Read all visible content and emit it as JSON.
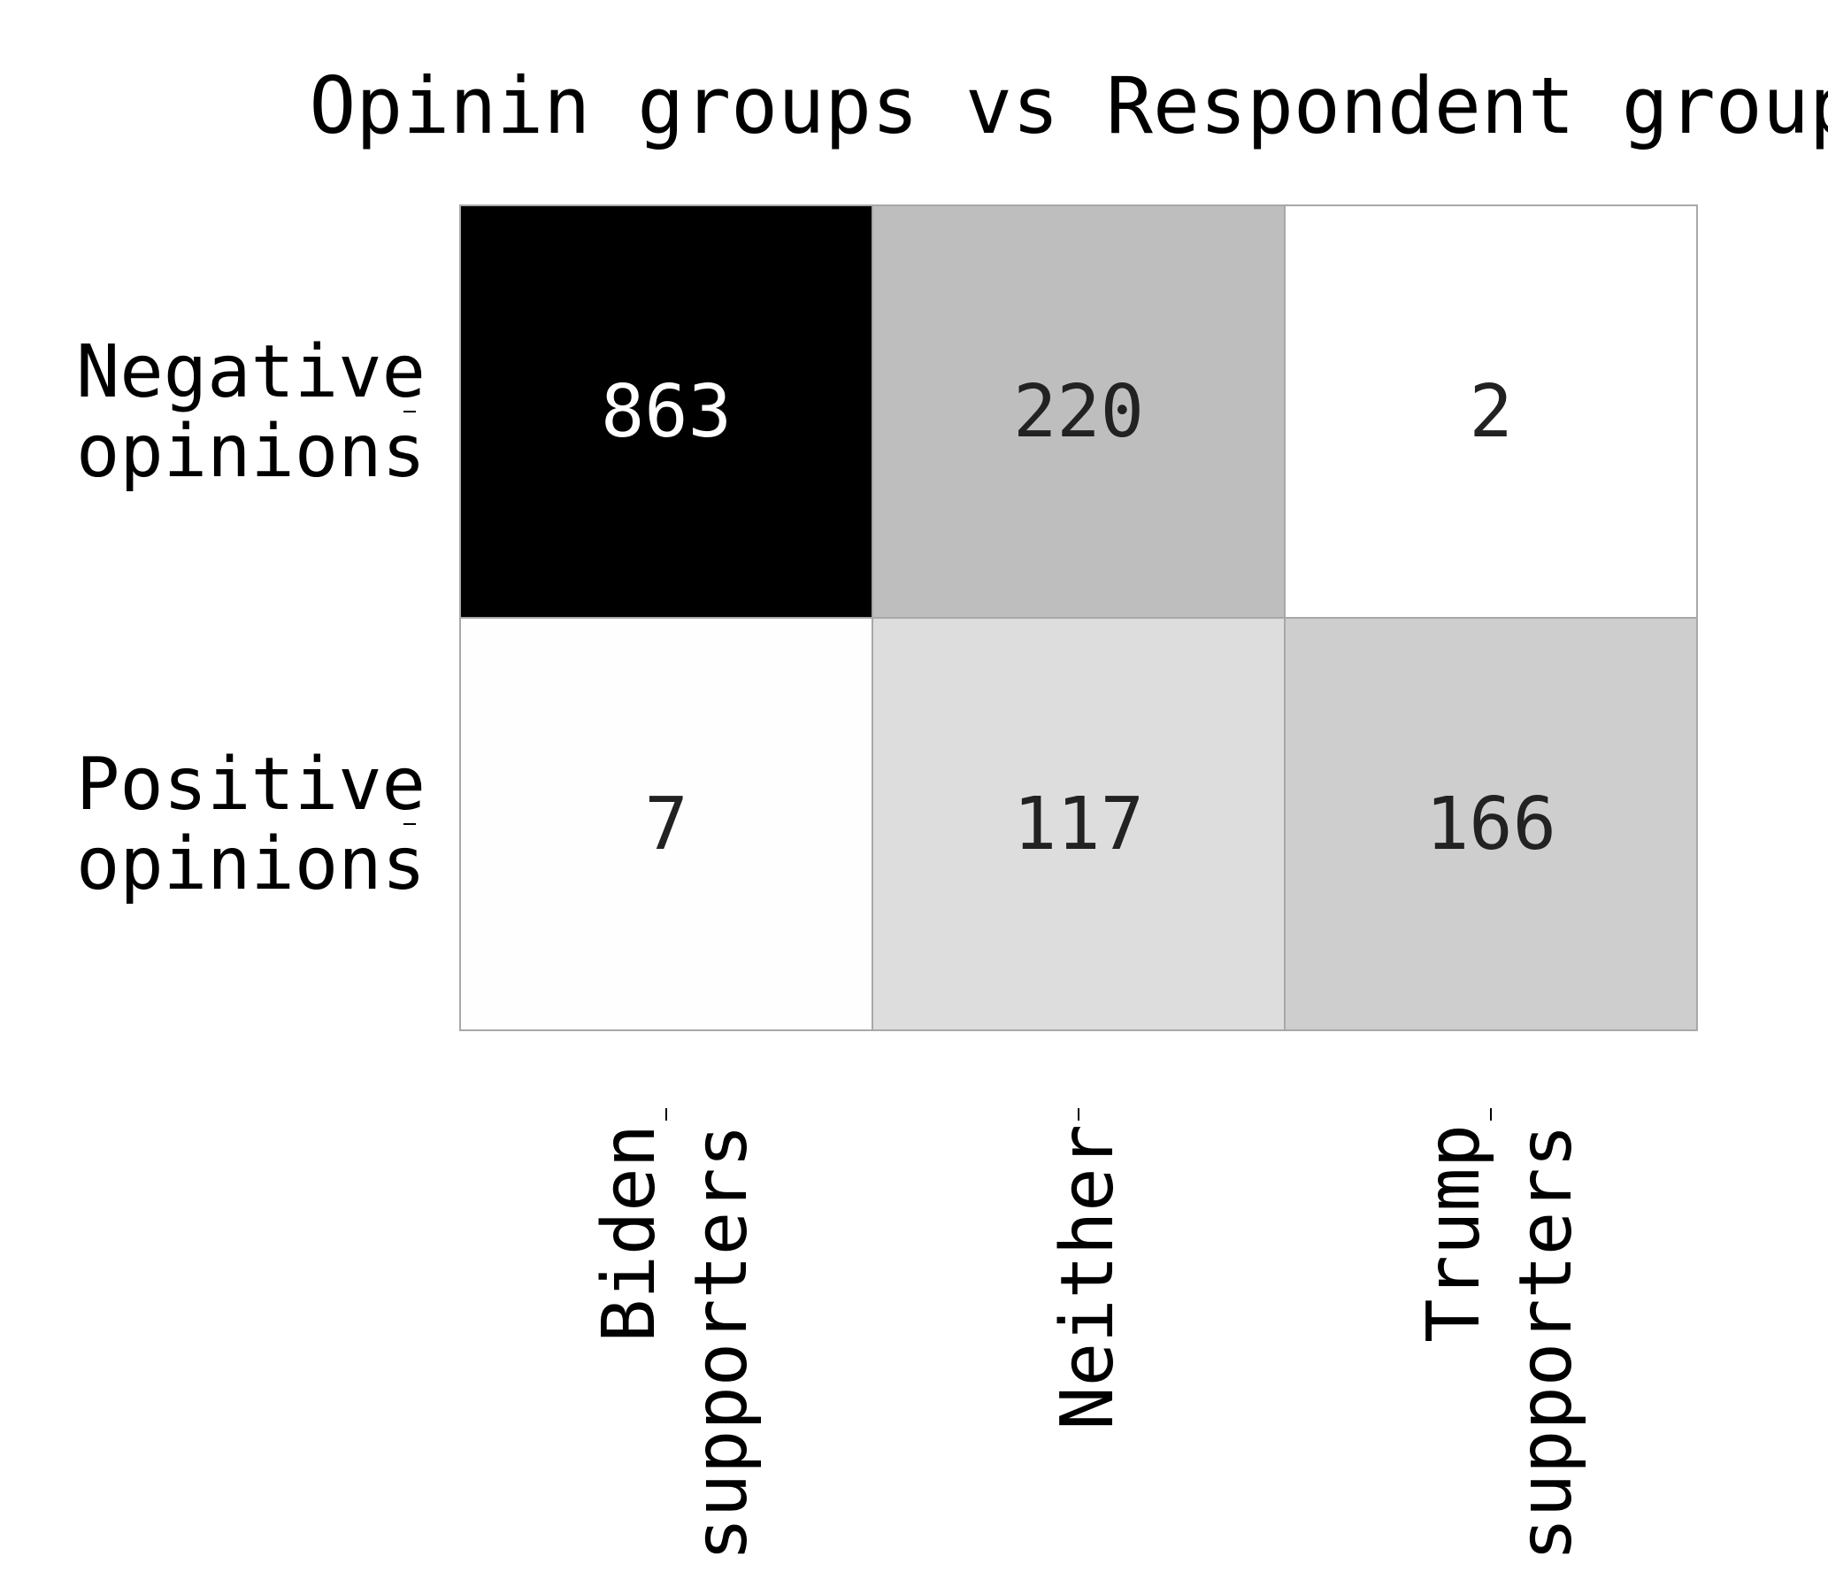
{
  "chart_data": {
    "type": "heatmap",
    "title": "Opinin groups vs Respondent groups",
    "rows": [
      [
        "Negative",
        "opinions"
      ],
      [
        "Positive",
        "opinions"
      ]
    ],
    "columns": [
      [
        "Biden",
        "supporters"
      ],
      [
        "Neither"
      ],
      [
        "Trump",
        "supporters"
      ]
    ],
    "values": [
      [
        863,
        220,
        2
      ],
      [
        7,
        117,
        166
      ]
    ],
    "colors": {
      "low": "#ffffff",
      "high": "#000000",
      "grid": "#a8a8a8",
      "dark_text": "#222222",
      "light_text": "#ffffff"
    },
    "xlabel": "",
    "ylabel": "",
    "legend": "none",
    "grid": false
  }
}
